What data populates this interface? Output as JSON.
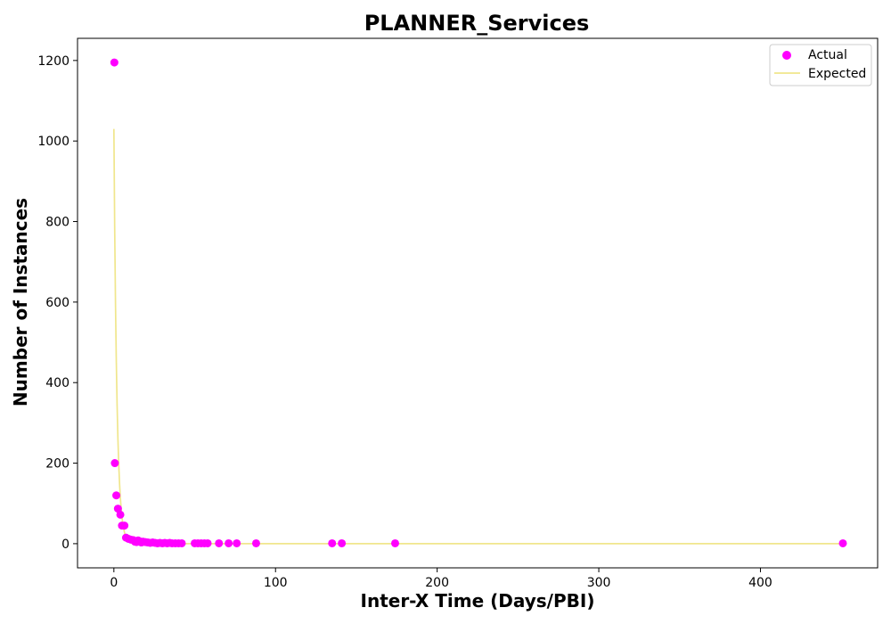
{
  "chart_data": {
    "type": "scatter",
    "title": "PLANNER_Services",
    "xlabel": "Inter-X Time (Days/PBI)",
    "ylabel": "Number of Instances",
    "xlim": [
      -22.5,
      472.5
    ],
    "ylim": [
      -60,
      1255
    ],
    "x_ticks": [
      0,
      100,
      200,
      300,
      400
    ],
    "y_ticks": [
      0,
      200,
      400,
      600,
      800,
      1000,
      1200
    ],
    "grid": false,
    "legend_position": "top-right",
    "series": [
      {
        "name": "Actual",
        "kind": "scatter",
        "color": "#ff00ff",
        "points": [
          [
            0.3,
            1195
          ],
          [
            0.6,
            200
          ],
          [
            1.5,
            120
          ],
          [
            2.5,
            87
          ],
          [
            4,
            72
          ],
          [
            5,
            45
          ],
          [
            6.5,
            45
          ],
          [
            7.5,
            15
          ],
          [
            9,
            12
          ],
          [
            10.5,
            10
          ],
          [
            12,
            9
          ],
          [
            13,
            5
          ],
          [
            14,
            4
          ],
          [
            15,
            8
          ],
          [
            16,
            6
          ],
          [
            17,
            3
          ],
          [
            18,
            5
          ],
          [
            19.5,
            4
          ],
          [
            21,
            3
          ],
          [
            22.5,
            2
          ],
          [
            24,
            3
          ],
          [
            25.5,
            2
          ],
          [
            27,
            1
          ],
          [
            28.5,
            2
          ],
          [
            30,
            1
          ],
          [
            31.5,
            2
          ],
          [
            33,
            1
          ],
          [
            34.5,
            2
          ],
          [
            36,
            1
          ],
          [
            38,
            1
          ],
          [
            40,
            1
          ],
          [
            42,
            1
          ],
          [
            50,
            1
          ],
          [
            52,
            1
          ],
          [
            54,
            1
          ],
          [
            56,
            1
          ],
          [
            58,
            1
          ],
          [
            65,
            1
          ],
          [
            71,
            1
          ],
          [
            76,
            1
          ],
          [
            88,
            1
          ],
          [
            135,
            1
          ],
          [
            141,
            1
          ],
          [
            174,
            1
          ],
          [
            451,
            1
          ]
        ]
      },
      {
        "name": "Expected",
        "kind": "line",
        "color": "#f0e68c",
        "amplitude": 1030,
        "decay_rate": 0.55,
        "x_start": 0,
        "x_end": 451
      }
    ]
  }
}
